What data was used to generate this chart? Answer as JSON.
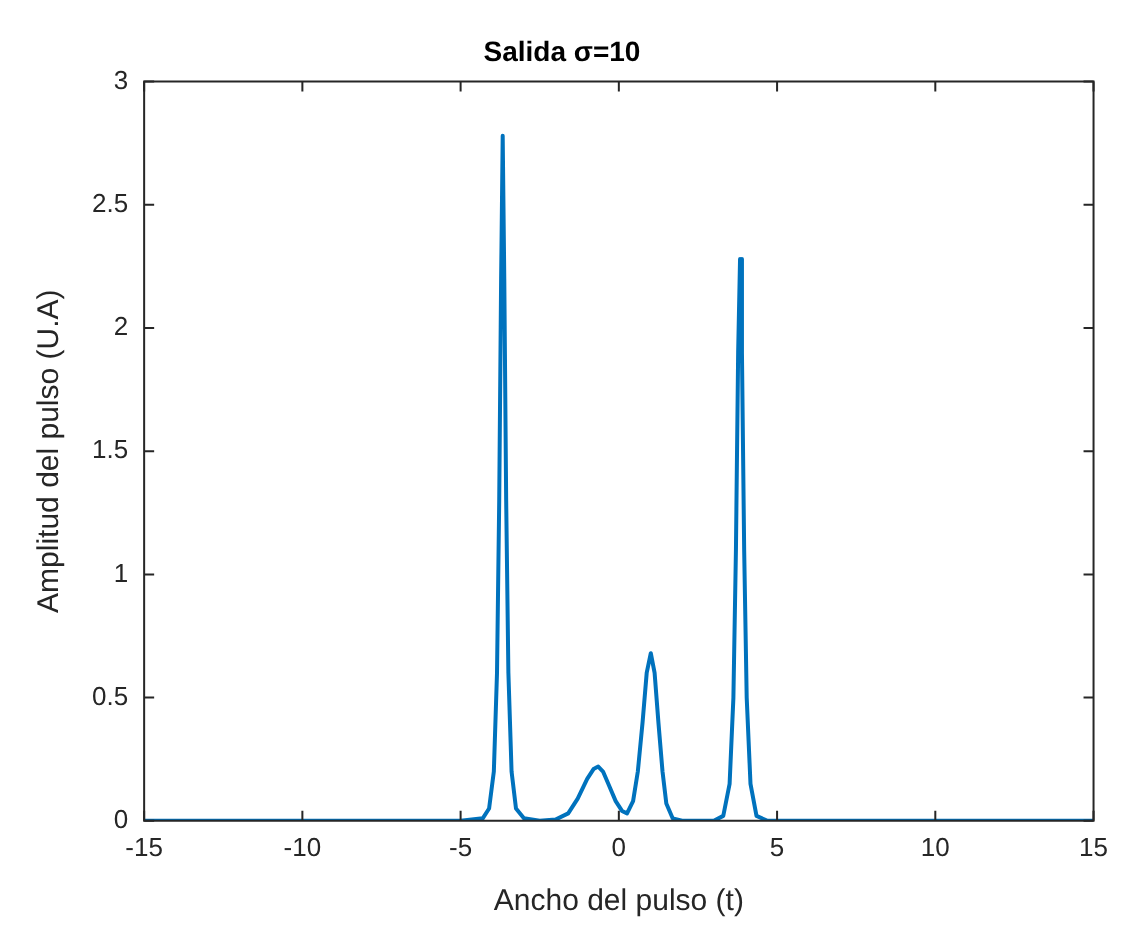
{
  "chart_data": {
    "type": "line",
    "title": "Salida σ=10",
    "xlabel": "Ancho del pulso (t)",
    "ylabel": "Amplitud del pulso (U.A)",
    "x": [
      -15,
      -5,
      -4.3,
      -4.1,
      -3.95,
      -3.85,
      -3.78,
      -3.72,
      -3.67,
      -3.62,
      -3.56,
      -3.49,
      -3.39,
      -3.25,
      -3.0,
      -2.5,
      -2,
      -1.6,
      -1.3,
      -1.0,
      -0.8,
      -0.65,
      -0.5,
      -0.3,
      -0.1,
      0.1,
      0.26,
      0.45,
      0.6,
      0.75,
      0.88,
      1.01,
      1.13,
      1.25,
      1.38,
      1.5,
      1.7,
      2.0,
      3.0,
      3.3,
      3.5,
      3.62,
      3.7,
      3.77,
      3.83,
      3.89,
      3.96,
      4.04,
      4.16,
      4.35,
      4.7,
      15
    ],
    "series": [
      {
        "color": "#0072bd",
        "values": [
          0,
          0,
          0.01,
          0.05,
          0.2,
          0.6,
          1.3,
          2.2,
          2.78,
          2.2,
          1.3,
          0.6,
          0.2,
          0.05,
          0.01,
          0,
          0.005,
          0.03,
          0.09,
          0.17,
          0.21,
          0.22,
          0.2,
          0.14,
          0.08,
          0.04,
          0.03,
          0.08,
          0.2,
          0.4,
          0.6,
          0.68,
          0.6,
          0.4,
          0.2,
          0.07,
          0.01,
          0,
          0,
          0.02,
          0.15,
          0.5,
          1.1,
          1.9,
          2.28,
          1.9,
          1.1,
          0.5,
          0.15,
          0.02,
          0,
          0
        ]
      }
    ],
    "xlim": [
      -15,
      15
    ],
    "xticks": [
      -15,
      -10,
      -5,
      0,
      5,
      10,
      15
    ],
    "ylim": [
      0,
      3
    ],
    "yticks": [
      0,
      0.5,
      1,
      1.5,
      2,
      2.5,
      3
    ],
    "grid": false,
    "legend": false,
    "marker": "none",
    "line_style": "solid"
  }
}
